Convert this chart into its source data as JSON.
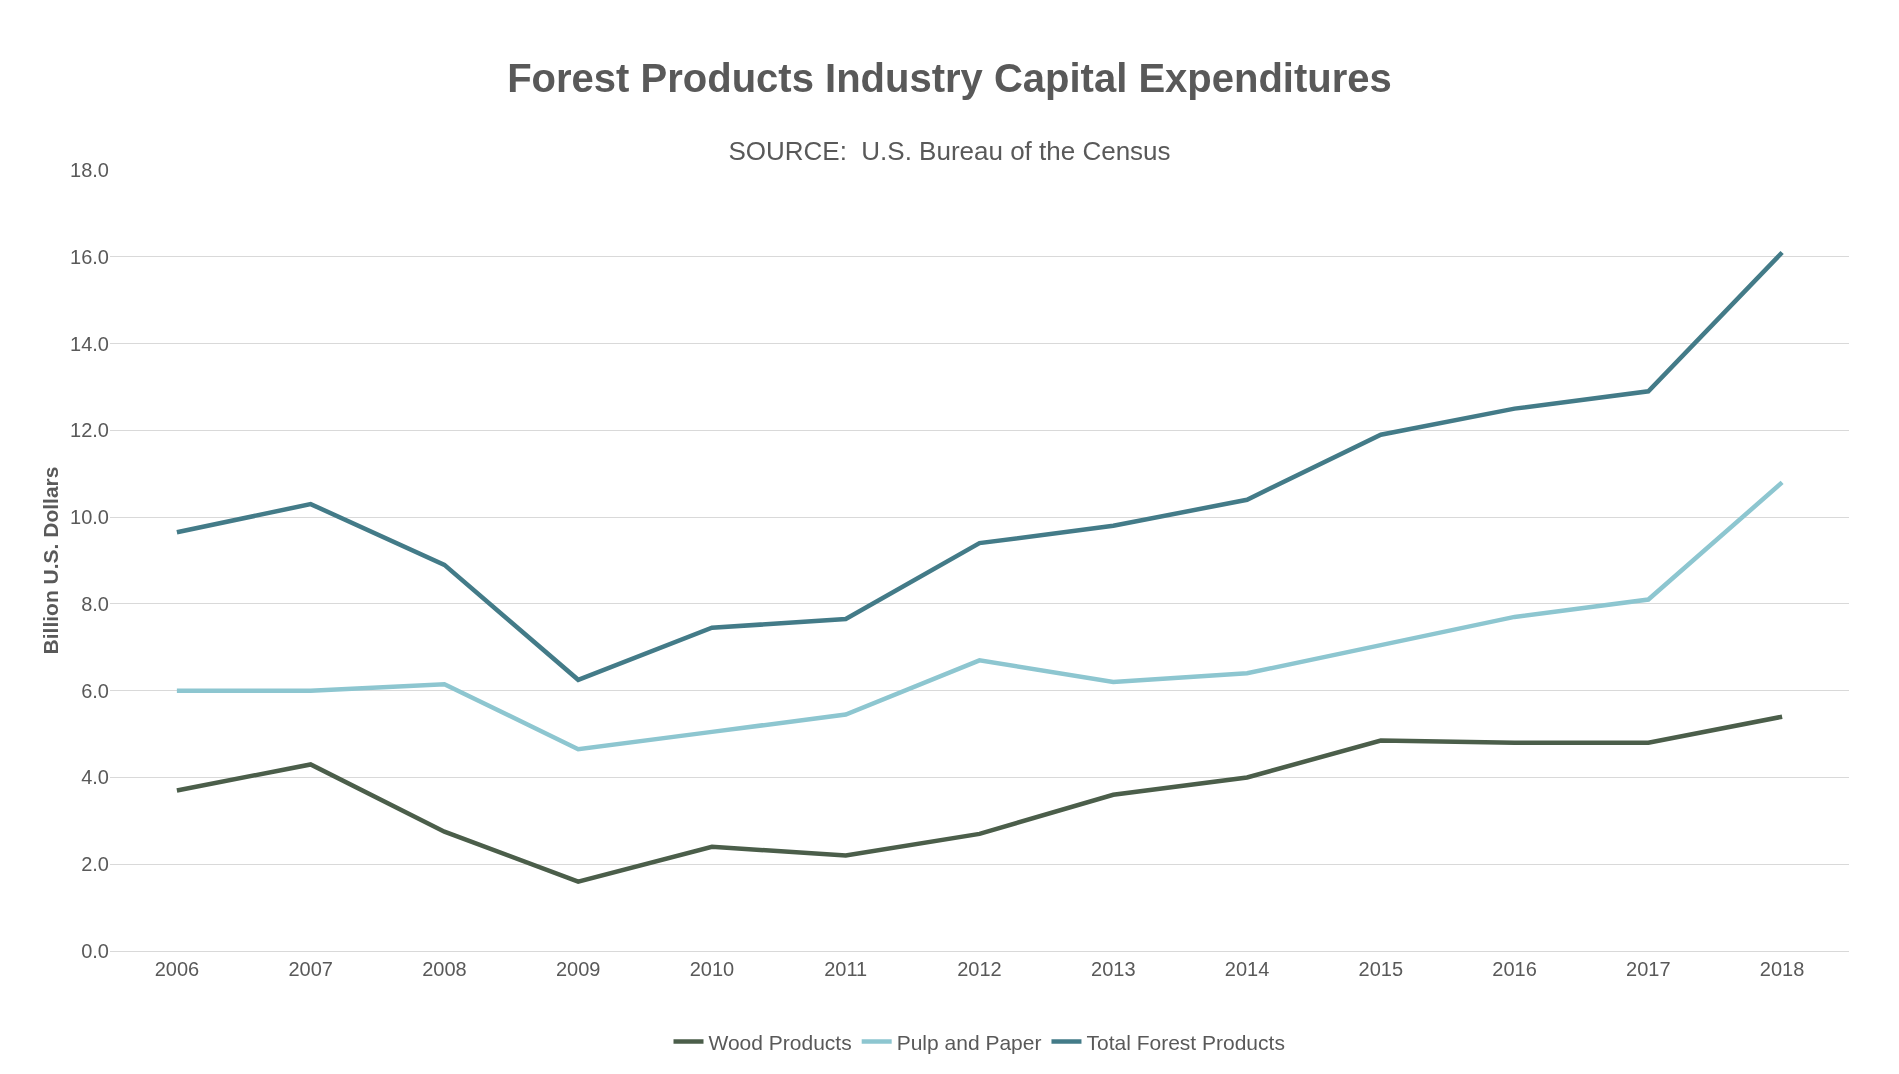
{
  "chart_data": {
    "type": "line",
    "title": "Forest Products Industry Capital Expenditures",
    "subtitle": "SOURCE:  U.S. Bureau of the Census",
    "ylabel": "Billion U.S. Dollars",
    "categories": [
      "2006",
      "2007",
      "2008",
      "2009",
      "2010",
      "2011",
      "2012",
      "2013",
      "2014",
      "2015",
      "2016",
      "2017",
      "2018"
    ],
    "series": [
      {
        "name": "Wood Products",
        "color": "#4b5e4a",
        "values": [
          3.7,
          4.3,
          2.75,
          1.6,
          2.4,
          2.2,
          2.7,
          3.6,
          4.0,
          4.85,
          4.8,
          4.8,
          5.4
        ]
      },
      {
        "name": "Pulp and Paper",
        "color": "#8dc6d0",
        "values": [
          6.0,
          6.0,
          6.15,
          4.65,
          5.05,
          5.45,
          6.7,
          6.2,
          6.4,
          7.05,
          7.7,
          8.1,
          10.8
        ]
      },
      {
        "name": "Total Forest Products",
        "color": "#437b88",
        "values": [
          9.65,
          10.3,
          8.9,
          6.25,
          7.45,
          7.65,
          9.4,
          9.8,
          10.4,
          11.9,
          12.5,
          12.9,
          16.1
        ]
      }
    ],
    "ylim": [
      0,
      18
    ],
    "yticks": [
      {
        "value": 0,
        "label": "0.0"
      },
      {
        "value": 2,
        "label": "2.0"
      },
      {
        "value": 4,
        "label": "4.0"
      },
      {
        "value": 6,
        "label": "6.0"
      },
      {
        "value": 8,
        "label": "8.0"
      },
      {
        "value": 10,
        "label": "10.0"
      },
      {
        "value": 12,
        "label": "12.0"
      },
      {
        "value": 14,
        "label": "14.0"
      },
      {
        "value": 16,
        "label": "16.0"
      },
      {
        "value": 18,
        "label": "18.0"
      }
    ],
    "grid": "y",
    "legend": "bottom",
    "marker": "none",
    "line_style": "solid"
  }
}
